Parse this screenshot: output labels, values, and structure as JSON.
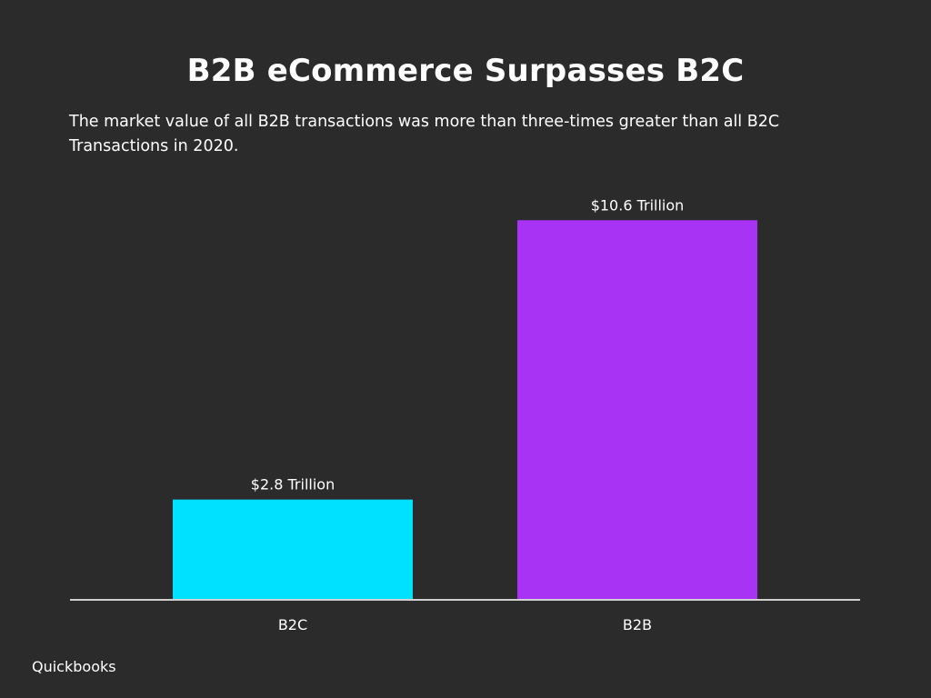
{
  "title": "B2B eCommerce Surpasses B2C",
  "subtitle": "The market value of all B2B transactions was more than three-times greater than all B2C Transactions in 2020.",
  "source": "Quickbooks",
  "colors": {
    "background": "#2b2b2b",
    "text": "#ffffff",
    "axis": "#cfcfcf"
  },
  "chart_data": {
    "type": "bar",
    "title": "B2B eCommerce Surpasses B2C",
    "subtitle": "The market value of all B2B transactions was more than three-times greater than all B2C Transactions in 2020.",
    "categories": [
      "B2C",
      "B2B"
    ],
    "values": [
      2.8,
      10.6
    ],
    "data_labels": [
      "$2.8 Trillion",
      "$10.6 Trillion"
    ],
    "bar_colors": [
      "#00e0ff",
      "#a833f5"
    ],
    "xlabel": "",
    "ylabel": "",
    "unit": "Trillion USD",
    "ylim": [
      0,
      11.8
    ],
    "grid": false,
    "legend": "none"
  }
}
